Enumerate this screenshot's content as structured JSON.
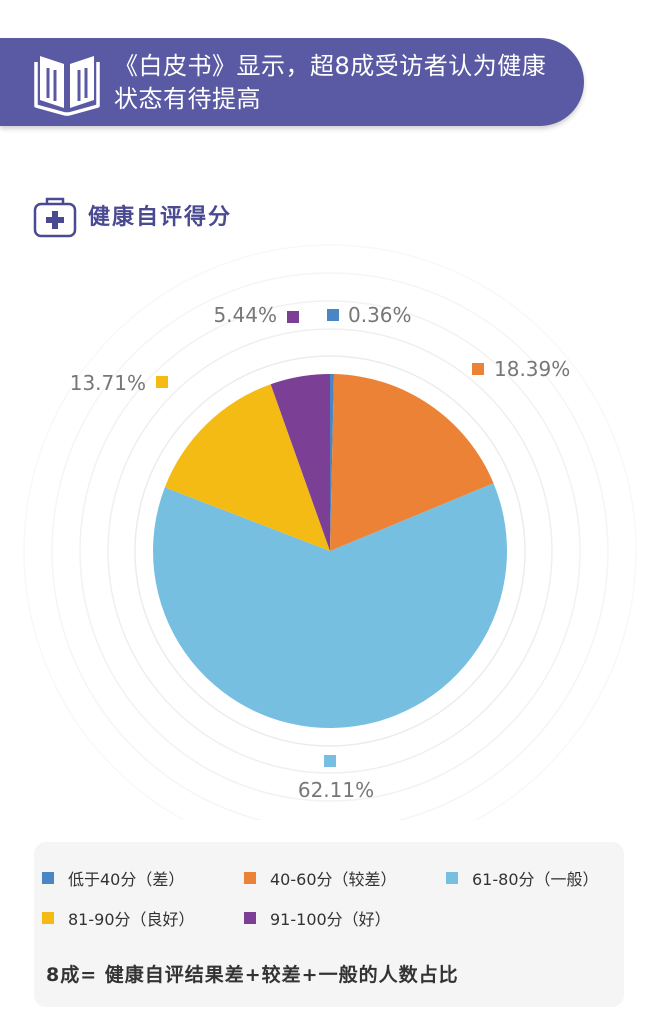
{
  "header": {
    "title": "《白皮书》显示，超8成受访者认为健康状态有待提高",
    "icon": "open-book-icon"
  },
  "section": {
    "title": "健康自评得分",
    "icon": "medical-kit-icon"
  },
  "chart_data": {
    "type": "pie",
    "title": "健康自评得分",
    "slices": [
      {
        "label": "低于40分（差）",
        "value": 0.36,
        "display": "0.36%",
        "color": "#4a86c3"
      },
      {
        "label": "40-60分（较差）",
        "value": 18.39,
        "display": "18.39%",
        "color": "#ec8235"
      },
      {
        "label": "61-80分（一般）",
        "value": 62.11,
        "display": "62.11%",
        "color": "#76bfe1"
      },
      {
        "label": "81-90分（良好）",
        "value": 13.71,
        "display": "13.71%",
        "color": "#f5bb15"
      },
      {
        "label": "91-100分（好）",
        "value": 5.44,
        "display": "5.44%",
        "color": "#7b3f96"
      }
    ],
    "legend_placement": "bottom"
  },
  "footnote": "8成= 健康自评结果差+较差+一般的人数占比"
}
